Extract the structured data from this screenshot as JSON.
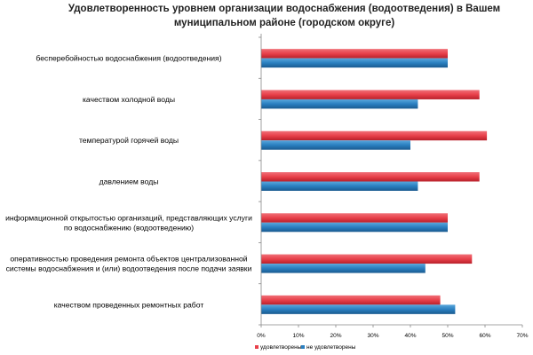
{
  "chart_data": {
    "type": "bar",
    "orientation": "horizontal",
    "title": "Удовлетворенность уровнем организации водоснабжения (водоотведения) в Вашем муниципальном районе (городском округе)",
    "title_lines": [
      "Удовлетворенность уровнем организации водоснабжения (водоотведения) в Вашем",
      "муниципальном районе (городском округе)"
    ],
    "xlabel": "",
    "ylabel": "",
    "xlim": [
      0,
      70
    ],
    "tick_labels": [
      "0%",
      "10%",
      "20%",
      "30%",
      "40%",
      "50%",
      "60%",
      "70%"
    ],
    "grid": false,
    "legend_position": "bottom",
    "categories": [
      [
        "бесперебойностью водоснабжения (водоотведения)"
      ],
      [
        "качеством холодной воды"
      ],
      [
        "температурой горячей воды"
      ],
      [
        "давлением воды"
      ],
      [
        "информационной открытостью организаций, представляющих услуги",
        "по водоснабжению (водоотведению)"
      ],
      [
        "оперативностью проведения ремонта объектов централизованной",
        "системы водоснабжения и (или) водоотведения после подачи заявки"
      ],
      [
        "качеством проведенных ремонтных работ"
      ]
    ],
    "series": [
      {
        "name": "удовлетворены",
        "color": "#e8404a",
        "values": [
          50,
          58.5,
          60.5,
          58.5,
          50,
          56.5,
          48
        ]
      },
      {
        "name": "не удовлетворены",
        "color": "#2a7fc0",
        "values": [
          50,
          42,
          40,
          42,
          50,
          44,
          52
        ]
      }
    ]
  }
}
